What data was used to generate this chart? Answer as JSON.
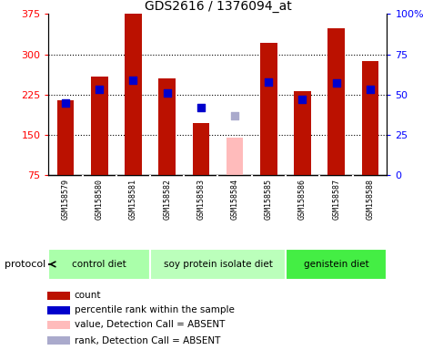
{
  "title": "GDS2616 / 1376094_at",
  "samples": [
    "GSM158579",
    "GSM158580",
    "GSM158581",
    "GSM158582",
    "GSM158583",
    "GSM158584",
    "GSM158585",
    "GSM158586",
    "GSM158587",
    "GSM158588"
  ],
  "bar_values": [
    215,
    258,
    375,
    255,
    172,
    null,
    322,
    232,
    348,
    288
  ],
  "bar_absent_values": [
    null,
    null,
    null,
    null,
    null,
    145,
    null,
    null,
    null,
    null
  ],
  "bar_color_normal": "#bb1100",
  "bar_color_absent": "#ffbbbb",
  "rank_values": [
    45,
    53,
    59,
    51,
    42,
    null,
    58,
    47,
    57,
    53
  ],
  "rank_absent_values": [
    null,
    null,
    null,
    null,
    null,
    37,
    null,
    null,
    null,
    null
  ],
  "rank_color_normal": "#0000cc",
  "rank_color_absent": "#aaaacc",
  "ylim_left": [
    75,
    375
  ],
  "ylim_right": [
    0,
    100
  ],
  "yticks_left": [
    75,
    150,
    225,
    300,
    375
  ],
  "yticks_right": [
    0,
    25,
    50,
    75,
    100
  ],
  "grid_values": [
    150,
    225,
    300
  ],
  "protocol_groups": [
    {
      "label": "control diet",
      "start": 0,
      "end": 3,
      "color": "#aaffaa"
    },
    {
      "label": "soy protein isolate diet",
      "start": 3,
      "end": 7,
      "color": "#bbffbb"
    },
    {
      "label": "genistein diet",
      "start": 7,
      "end": 10,
      "color": "#44ee44"
    }
  ],
  "legend_items": [
    {
      "color": "#bb1100",
      "label": "count"
    },
    {
      "color": "#0000cc",
      "label": "percentile rank within the sample"
    },
    {
      "color": "#ffbbbb",
      "label": "value, Detection Call = ABSENT"
    },
    {
      "color": "#aaaacc",
      "label": "rank, Detection Call = ABSENT"
    }
  ],
  "bar_width": 0.5,
  "rank_marker_size": 40,
  "plot_bg_color": "#ffffff",
  "xlabels_bg_color": "#cccccc",
  "protocol_label": "protocol"
}
